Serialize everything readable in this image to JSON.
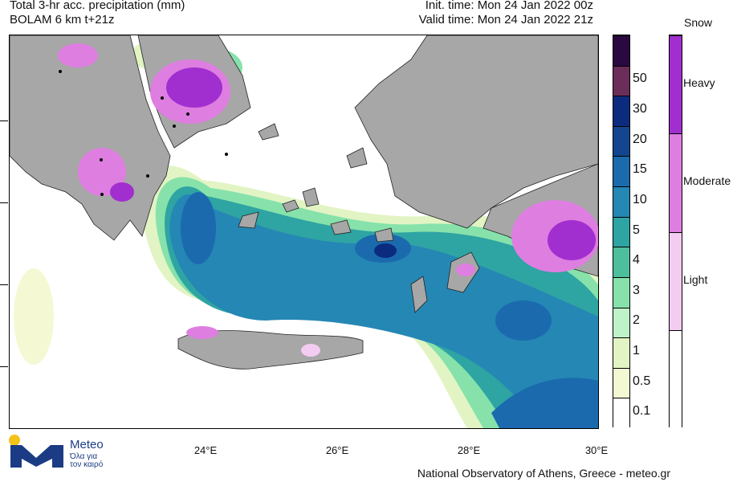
{
  "header": {
    "title_line1": "Total 3-hr acc. precipitation (mm)",
    "title_line2": "BOLAM 6 km t+21z",
    "init_time": "Init. time: Mon 24 Jan 2022 00z",
    "valid_time": "Valid time: Mon 24 Jan 2022 21z"
  },
  "map": {
    "x_axis_ticks": [
      "24°E",
      "26°E",
      "28°E",
      "30°E"
    ],
    "land_color": "#a7a7a7",
    "sea_color": "#ffffff"
  },
  "precip_legend": {
    "levels": [
      {
        "label": "0.1",
        "color": "#ffffff"
      },
      {
        "label": "0.5",
        "color": "#f4f9d4"
      },
      {
        "label": "1",
        "color": "#e2f4c4"
      },
      {
        "label": "2",
        "color": "#bff2c8"
      },
      {
        "label": "3",
        "color": "#86e2aa"
      },
      {
        "label": "4",
        "color": "#4dbf9c"
      },
      {
        "label": "5",
        "color": "#2ea4a3"
      },
      {
        "label": "10",
        "color": "#2587b4"
      },
      {
        "label": "15",
        "color": "#1b6aae"
      },
      {
        "label": "20",
        "color": "#12478f"
      },
      {
        "label": "30",
        "color": "#0b2b7f"
      },
      {
        "label": "50",
        "color": "#6b2e5a"
      },
      {
        "label": "",
        "color": "#2a0840"
      }
    ]
  },
  "snow_legend": {
    "title": "Snow",
    "levels": [
      {
        "label": "",
        "color": "#ffffff"
      },
      {
        "label": "Light",
        "color": "#f4ccf2"
      },
      {
        "label": "Moderate",
        "color": "#de7ee0"
      },
      {
        "label": "Heavy",
        "color": "#a12fd0"
      }
    ]
  },
  "logo": {
    "name": "Meteo",
    "tagline_line1": "Όλα για",
    "tagline_line2": "τον καιρό",
    "colors": {
      "blue": "#1b3c84",
      "yellow": "#f5c219"
    }
  },
  "footer": "National Observatory of Athens, Greece - meteo.gr"
}
